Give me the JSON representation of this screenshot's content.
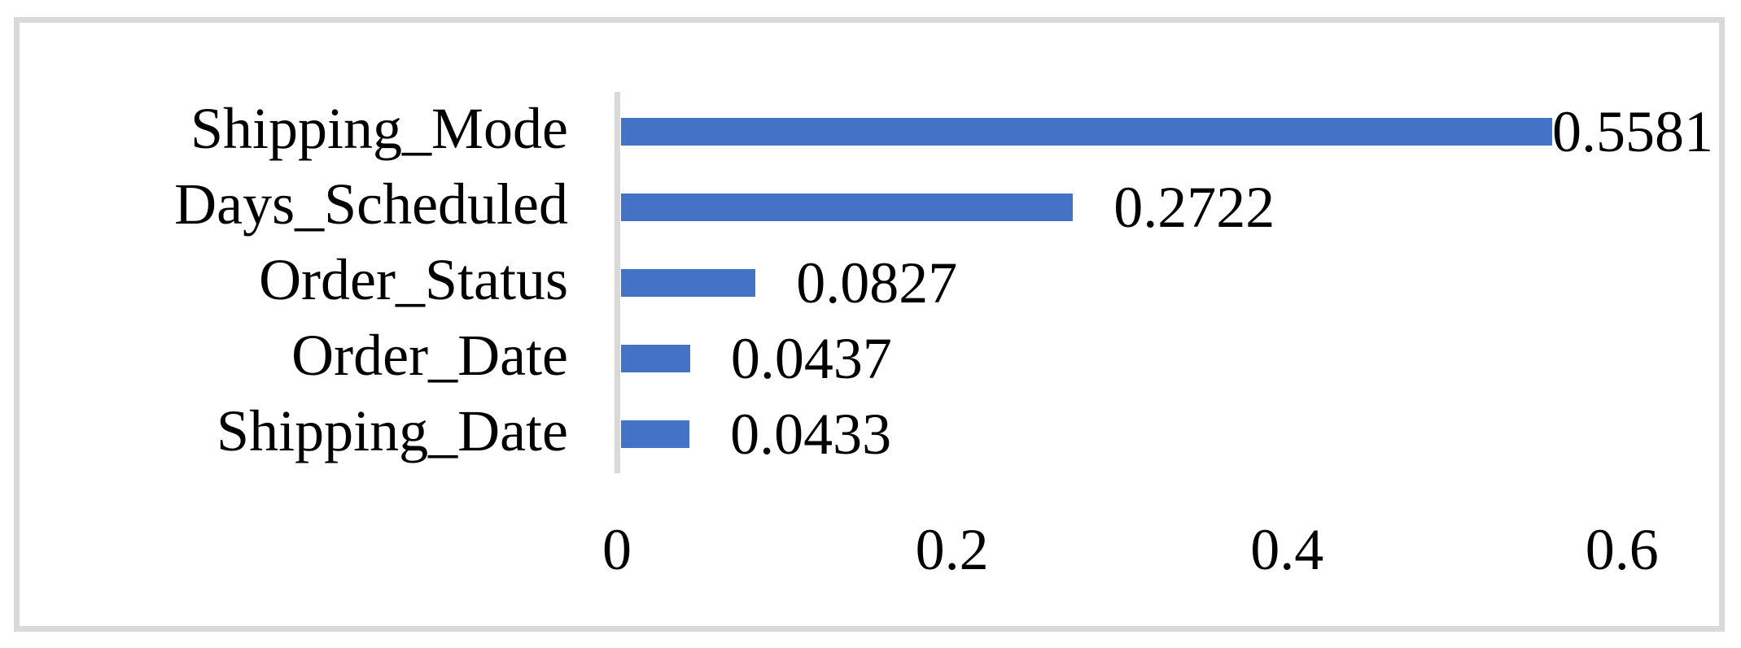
{
  "chart_data": {
    "type": "bar",
    "orientation": "horizontal",
    "title": "",
    "xlabel": "",
    "ylabel": "",
    "categories": [
      "Shipping_Mode",
      "Days_Scheduled",
      "Order_Status",
      "Order_Date",
      "Shipping_Date"
    ],
    "values": [
      0.5581,
      0.2722,
      0.0827,
      0.0437,
      0.0433
    ],
    "value_labels": [
      "0.5581",
      "0.2722",
      "0.0827",
      "0.0437",
      "0.0433"
    ],
    "xlim": [
      0,
      0.6
    ],
    "x_ticks": [
      0,
      0.2,
      0.4,
      0.6
    ],
    "x_tick_labels": [
      "0",
      "0.2",
      "0.4",
      "0.6"
    ],
    "grid": false,
    "legend": false,
    "data_labels": "outside-end",
    "bar_color": "#4472c4",
    "axis_line_color": "#d9d9d9",
    "frame_border_color": "#d9d9d9",
    "text_color": "#000000"
  }
}
